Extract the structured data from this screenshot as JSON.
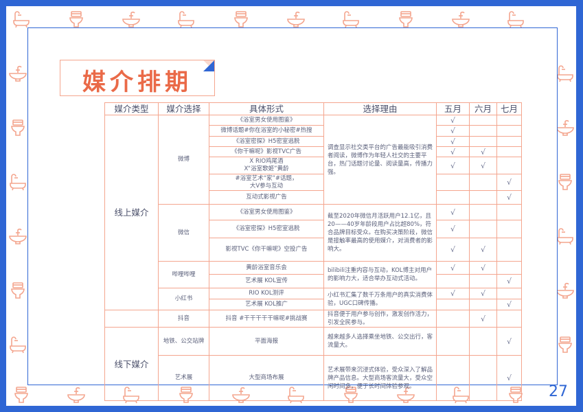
{
  "title": "媒介排期",
  "page_number": "27",
  "colors": {
    "brand_blue": "#2f66d4",
    "accent_orange": "#ea6a48",
    "line_salmon": "#f4a58e"
  },
  "decor_icons": [
    "bathtub-icon",
    "toilet-icon",
    "sink-icon"
  ],
  "table": {
    "headers": [
      "媒介类型",
      "媒介选择",
      "具体形式",
      "选择理由",
      "五月",
      "六月",
      "七月"
    ],
    "check_mark": "√",
    "groups": [
      {
        "type": "线上媒介",
        "channels": [
          {
            "name": "微博",
            "reason": "调查显示社交类平台的广告最能吸引消费者阅读，微博作为年轻人社交的主要平台，热门话题讨论量、阅读量高，传播力强。",
            "items": [
              {
                "form": "《浴室男女使用图鉴》",
                "months": [
                  true,
                  false,
                  false
                ]
              },
              {
                "form": "微博话题#你在浴室的小秘密#热搜",
                "months": [
                  true,
                  false,
                  false
                ]
              },
              {
                "form": "《浴室密探》H5密室逃脱",
                "months": [
                  true,
                  false,
                  false
                ]
              },
              {
                "form": "《你干嘛呢》影视TVC广告",
                "months": [
                  true,
                  true,
                  false
                ]
              },
              {
                "form": "X RIO鸡尾酒\nX“浴室歌姬”黄龄",
                "months": [
                  true,
                  true,
                  false
                ]
              },
              {
                "form": "#浴室艺术“家”#话题，\n大V参与互动",
                "months": [
                  false,
                  false,
                  true
                ]
              },
              {
                "form": "互动式影视广告",
                "months": [
                  false,
                  false,
                  true
                ]
              }
            ]
          },
          {
            "name": "微信",
            "reason": "截至2020年微信月活跃用户12.1亿，且20——40岁年龄段用户占比超80%，符合品牌目标受众。在购买决策阶段，微信是接触率最高的使用媒介，对消费者的影响大。",
            "items": [
              {
                "form": "《浴室男女使用图鉴》",
                "months": [
                  true,
                  false,
                  false
                ]
              },
              {
                "form": "《浴室密探》H5密室逃脱",
                "months": [
                  true,
                  false,
                  false
                ]
              },
              {
                "form": "影视TVC《你干嘛呢》空投广告",
                "months": [
                  true,
                  true,
                  false
                ]
              }
            ]
          },
          {
            "name": "哔哩哔哩",
            "reason": "bilibili注重内容与互动，KOL博主对用户的影响力大，适合举办互动式活动。",
            "items": [
              {
                "form": "黄龄浴室音乐会",
                "months": [
                  true,
                  true,
                  false
                ]
              },
              {
                "form": "艺术展 KOL宣传",
                "months": [
                  false,
                  false,
                  true
                ]
              }
            ]
          },
          {
            "name": "小红书",
            "reason": "小红书汇集了数千万条用户的真实消费体验，UGC口碑传播。",
            "items": [
              {
                "form": "RIO KOL测评",
                "months": [
                  true,
                  true,
                  false
                ]
              },
              {
                "form": "艺术展 KOL推广",
                "months": [
                  false,
                  false,
                  true
                ]
              }
            ]
          }
        ]
      },
      {
        "type": "",
        "channels": [
          {
            "name": "抖音",
            "reason": "抖音便于用户参与创作，激发创作活力，引发全民参与。",
            "items": [
              {
                "form": "抖音 #干干干干干嘛呢#挑战赛",
                "months": [
                  false,
                  true,
                  false
                ]
              }
            ]
          }
        ]
      },
      {
        "type": "线下媒介",
        "channels": [
          {
            "name": "地铁、公交站牌",
            "reason": "越来越多人选择乘坐地铁、公交出行，客流量大。",
            "items": [
              {
                "form": "平面海报",
                "months": [
                  false,
                  false,
                  true
                ]
              }
            ]
          },
          {
            "name": "艺术展",
            "reason": "艺术展带来沉浸式体验，受众深入了解品牌产品信息。大型商场客流量大，受众空闲时间多，便于长时间体验参观。",
            "items": [
              {
                "form": "大型商场布展",
                "months": [
                  false,
                  false,
                  true
                ]
              }
            ]
          }
        ]
      }
    ]
  }
}
